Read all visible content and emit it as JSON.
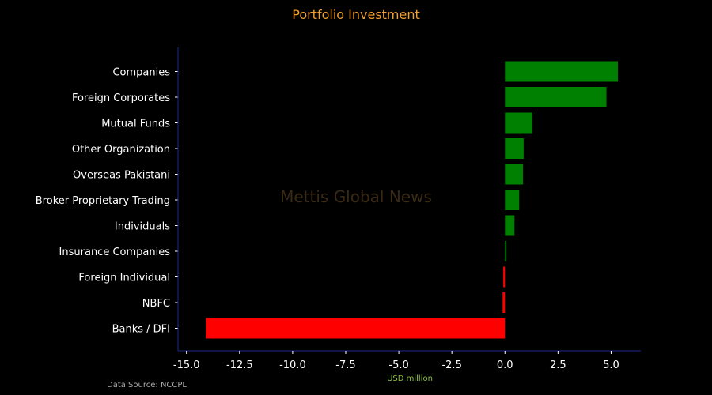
{
  "chart_data": {
    "type": "bar",
    "orientation": "horizontal",
    "title": "Portfolio Investment",
    "xlabel": "USD million",
    "ylabel": "",
    "categories": [
      "Companies",
      "Foreign Corporates ",
      "Mutual Funds",
      "Other Organization",
      "Overseas Pakistani",
      "Broker Proprietary Trading",
      "Individuals",
      "Insurance Companies",
      "Foreign Individual",
      "NBFC",
      "Banks / DFI"
    ],
    "values": [
      5.32,
      4.78,
      1.29,
      0.88,
      0.85,
      0.67,
      0.45,
      0.07,
      -0.08,
      -0.11,
      -14.08
    ],
    "xlim": [
      -15.4,
      6.4
    ],
    "xticks": [
      -15.0,
      -12.5,
      -10.0,
      -7.5,
      -5.0,
      -2.5,
      0.0,
      2.5,
      5.0
    ],
    "xtick_labels": [
      "-15.0",
      "-12.5",
      "-10.0",
      "-7.5",
      "-5.0",
      "-2.5",
      "0.0",
      "2.5",
      "5.0"
    ],
    "grid": false,
    "legend": "none",
    "colors": {
      "positive": "#008000",
      "negative": "#ff0000",
      "title": "#f0a030",
      "xlabel": "#8fbf40",
      "axis": "#1c2a8a",
      "tick_text": "#ffffff",
      "watermark": "#3a2a14",
      "source": "#aaaaaa",
      "background": "#000000"
    }
  },
  "watermark": "Mettis Global News",
  "source": "Data Source: NCCPL"
}
